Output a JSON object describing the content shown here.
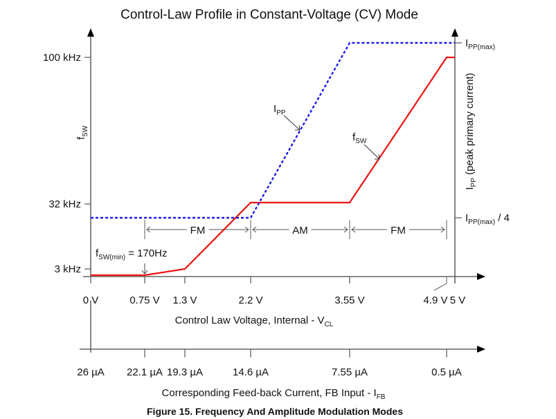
{
  "chart_data": {
    "type": "line",
    "title": "Control-Law Profile in Constant-Voltage (CV) Mode",
    "caption": "Figure 15.  Frequency And Amplitude Modulation Modes",
    "x_axis": {
      "label": "Control Law Voltage, Internal - V",
      "label_sub": "CL",
      "range": [
        0,
        5
      ],
      "tick_values": [
        0,
        0.75,
        1.3,
        2.2,
        3.55,
        4.9,
        5
      ],
      "tick_labels": [
        "0 V",
        "0.75 V",
        "1.3 V",
        "2.2 V",
        "3.55 V",
        "4.9 V",
        "5 V"
      ]
    },
    "x2_axis": {
      "label": "Corresponding Feed-back Current, FB Input - I",
      "label_sub": "FB",
      "tick_at_v": [
        0,
        0.75,
        1.3,
        2.2,
        3.55,
        4.9
      ],
      "tick_labels": [
        "26 µA",
        "22.1 µA",
        "19.3 µA",
        "14.6 µA",
        "7.55 µA",
        "0.5 µA"
      ]
    },
    "y_left": {
      "label": "f",
      "label_sub": "SW",
      "tick_labels": [
        "100 kHz",
        "32 kHz",
        "3 kHz"
      ]
    },
    "y_right": {
      "label_main": "I",
      "label_sub": "PP",
      "label_rest": " (peak primary current)",
      "tick_max_main": "I",
      "tick_max_sub": "PP(max)",
      "tick_quarter_main": "I",
      "tick_quarter_sub": "PP(max)",
      "tick_quarter_rest": " / 4"
    },
    "series": [
      {
        "name": "fSW",
        "label_main": "f",
        "label_sub": "SW",
        "color": "#ee1111",
        "style": "solid",
        "points_v": [
          0,
          0.75,
          1.3,
          2.2,
          3.55,
          4.9,
          5
        ],
        "points_level": [
          "170 Hz",
          "170 Hz",
          "3 kHz",
          "32 kHz",
          "32 kHz",
          "100 kHz",
          "100 kHz"
        ]
      },
      {
        "name": "IPP",
        "label_main": "I",
        "label_sub": "PP",
        "color": "#1a1aee",
        "style": "dotted",
        "points_v": [
          0,
          2.2,
          3.55,
          5
        ],
        "points_level": [
          "IPP(max)/4",
          "IPP(max)/4",
          "IPP(max)",
          "IPP(max)"
        ]
      }
    ],
    "annotations": {
      "fsw_min_main": "f",
      "fsw_min_sub": "SW(min)",
      "fsw_min_rest": " = 170Hz",
      "regions": [
        {
          "label": "FM",
          "from_v": 0.75,
          "to_v": 2.2
        },
        {
          "label": "AM",
          "from_v": 2.2,
          "to_v": 3.55
        },
        {
          "label": "FM",
          "from_v": 3.55,
          "to_v": 4.9
        }
      ]
    }
  }
}
